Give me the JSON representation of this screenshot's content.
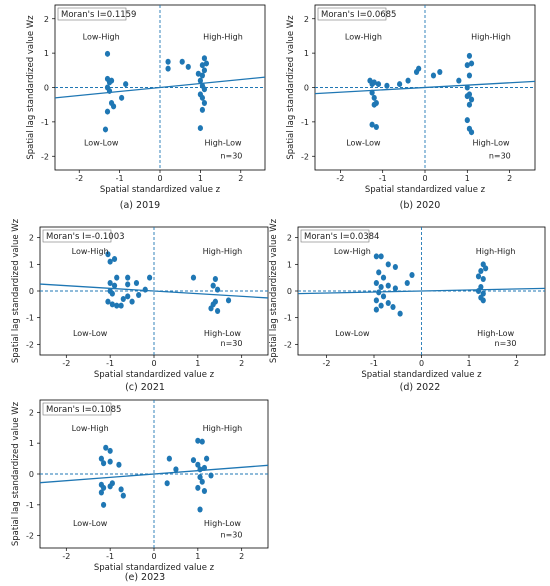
{
  "chart_data": [
    {
      "type": "scatter",
      "caption": "(a) 2019",
      "stat": "Moran's I=0.1159",
      "n_label": "n=30",
      "quadrants": {
        "top_left": "Low-High",
        "top_right": "High-High",
        "bottom_left": "Low-Low",
        "bottom_right": "High-Low"
      },
      "xlabel": "Spatial standardized value z",
      "ylabel": "Spatial lag standardized value Wz",
      "xlim": [
        -2.6,
        2.6
      ],
      "ylim": [
        -2.4,
        2.4
      ],
      "xticks": [
        -2,
        -1,
        0,
        1,
        2
      ],
      "yticks": [
        -2,
        -1,
        0,
        1,
        2
      ],
      "slope": 0.1159,
      "points": [
        [
          -1.3,
          0.98
        ],
        [
          -1.3,
          0.25
        ],
        [
          -1.25,
          0.15
        ],
        [
          -1.2,
          0.2
        ],
        [
          -1.3,
          0.0
        ],
        [
          -1.25,
          -0.1
        ],
        [
          -1.2,
          -0.45
        ],
        [
          -1.15,
          -0.55
        ],
        [
          -1.3,
          -0.7
        ],
        [
          -1.35,
          -1.22
        ],
        [
          -0.95,
          -0.3
        ],
        [
          -0.85,
          0.1
        ],
        [
          0.2,
          0.75
        ],
        [
          0.2,
          0.55
        ],
        [
          0.55,
          0.75
        ],
        [
          0.7,
          0.6
        ],
        [
          1.1,
          0.85
        ],
        [
          1.05,
          0.65
        ],
        [
          1.1,
          0.5
        ],
        [
          1.05,
          0.35
        ],
        [
          1.0,
          0.2
        ],
        [
          1.05,
          0.05
        ],
        [
          1.1,
          -0.05
        ],
        [
          1.0,
          -0.2
        ],
        [
          1.05,
          -0.3
        ],
        [
          1.1,
          -0.45
        ],
        [
          1.05,
          -0.65
        ],
        [
          1.0,
          -1.18
        ],
        [
          1.15,
          0.7
        ],
        [
          0.95,
          0.4
        ]
      ]
    },
    {
      "type": "scatter",
      "caption": "(b) 2020",
      "stat": "Moran's I=0.0685",
      "n_label": "n=30",
      "quadrants": {
        "top_left": "Low-High",
        "top_right": "High-High",
        "bottom_left": "Low-Low",
        "bottom_right": "High-Low"
      },
      "xlabel": "Spatial standardized value z",
      "ylabel": "Spatial lag standardized value Wz",
      "xlim": [
        -2.6,
        2.6
      ],
      "ylim": [
        -2.4,
        2.4
      ],
      "xticks": [
        -2,
        -1,
        0,
        1,
        2
      ],
      "yticks": [
        -2,
        -1,
        0,
        1,
        2
      ],
      "slope": 0.0685,
      "points": [
        [
          -1.3,
          0.2
        ],
        [
          -1.25,
          0.1
        ],
        [
          -1.2,
          0.15
        ],
        [
          -1.1,
          0.1
        ],
        [
          -1.25,
          -0.15
        ],
        [
          -1.2,
          -0.3
        ],
        [
          -1.15,
          -0.45
        ],
        [
          -1.2,
          -0.5
        ],
        [
          -1.25,
          -1.08
        ],
        [
          -1.15,
          -1.15
        ],
        [
          -0.9,
          0.05
        ],
        [
          -0.6,
          0.1
        ],
        [
          -0.4,
          0.2
        ],
        [
          -0.2,
          0.45
        ],
        [
          -0.15,
          0.55
        ],
        [
          0.2,
          0.35
        ],
        [
          0.35,
          0.45
        ],
        [
          0.8,
          0.2
        ],
        [
          1.05,
          0.92
        ],
        [
          1.0,
          0.65
        ],
        [
          1.1,
          0.7
        ],
        [
          1.05,
          0.35
        ],
        [
          1.0,
          0.0
        ],
        [
          1.05,
          -0.2
        ],
        [
          1.1,
          -0.35
        ],
        [
          1.05,
          -0.5
        ],
        [
          1.0,
          -0.95
        ],
        [
          1.05,
          -1.2
        ],
        [
          1.1,
          -1.3
        ],
        [
          1.0,
          -0.25
        ]
      ]
    },
    {
      "type": "scatter",
      "caption": "(c) 2021",
      "stat": "Moran's I=-0.1003",
      "n_label": "n=30",
      "quadrants": {
        "top_left": "Low-High",
        "top_right": "High-High",
        "bottom_left": "Low-Low",
        "bottom_right": "High-Low"
      },
      "xlabel": "Spatial standardized value z",
      "ylabel": "Spatial lag standardized value Wz",
      "xlim": [
        -2.6,
        2.6
      ],
      "ylim": [
        -2.4,
        2.4
      ],
      "xticks": [
        -2,
        -1,
        0,
        1,
        2
      ],
      "yticks": [
        -2,
        -1,
        0,
        1,
        2
      ],
      "slope": -0.1003,
      "points": [
        [
          -1.05,
          1.38
        ],
        [
          -1.0,
          1.1
        ],
        [
          -0.9,
          1.2
        ],
        [
          -0.85,
          0.5
        ],
        [
          -0.6,
          0.5
        ],
        [
          -0.1,
          0.5
        ],
        [
          -1.0,
          0.3
        ],
        [
          -0.9,
          0.2
        ],
        [
          -0.6,
          0.25
        ],
        [
          -0.4,
          0.3
        ],
        [
          -1.0,
          0.0
        ],
        [
          -0.95,
          -0.1
        ],
        [
          -1.05,
          -0.4
        ],
        [
          -0.95,
          -0.5
        ],
        [
          -0.85,
          -0.55
        ],
        [
          -0.7,
          -0.3
        ],
        [
          -0.6,
          -0.2
        ],
        [
          -0.5,
          -0.4
        ],
        [
          -0.35,
          -0.15
        ],
        [
          -0.2,
          0.05
        ],
        [
          -0.75,
          -0.55
        ],
        [
          0.9,
          0.5
        ],
        [
          1.4,
          0.45
        ],
        [
          1.35,
          0.2
        ],
        [
          1.45,
          0.05
        ],
        [
          1.4,
          -0.4
        ],
        [
          1.35,
          -0.5
        ],
        [
          1.3,
          -0.65
        ],
        [
          1.45,
          -0.75
        ],
        [
          1.7,
          -0.35
        ]
      ]
    },
    {
      "type": "scatter",
      "caption": "(d) 2022",
      "stat": "Moran's I=0.0384",
      "n_label": "n=30",
      "quadrants": {
        "top_left": "Low-High",
        "top_right": "High-High",
        "bottom_left": "Low-Low",
        "bottom_right": "High-Low"
      },
      "xlabel": "Spatial standardized value z",
      "ylabel": "Spatial lag standardized value Wz",
      "xlim": [
        -2.6,
        2.6
      ],
      "ylim": [
        -2.4,
        2.4
      ],
      "xticks": [
        -2,
        -1,
        0,
        1,
        2
      ],
      "yticks": [
        -2,
        -1,
        0,
        1,
        2
      ],
      "slope": 0.0384,
      "points": [
        [
          -0.95,
          1.3
        ],
        [
          -0.85,
          1.3
        ],
        [
          -0.7,
          1.0
        ],
        [
          -0.55,
          0.9
        ],
        [
          -0.9,
          0.7
        ],
        [
          -0.8,
          0.5
        ],
        [
          -0.95,
          0.3
        ],
        [
          -0.85,
          0.15
        ],
        [
          -0.7,
          0.2
        ],
        [
          -0.55,
          0.1
        ],
        [
          -0.9,
          -0.05
        ],
        [
          -0.8,
          -0.2
        ],
        [
          -0.95,
          -0.35
        ],
        [
          -0.85,
          -0.55
        ],
        [
          -0.7,
          -0.45
        ],
        [
          -0.6,
          -0.6
        ],
        [
          -0.45,
          -0.85
        ],
        [
          -0.95,
          -0.7
        ],
        [
          -0.3,
          0.3
        ],
        [
          -0.2,
          0.6
        ],
        [
          1.3,
          1.0
        ],
        [
          1.25,
          0.75
        ],
        [
          1.2,
          0.55
        ],
        [
          1.3,
          0.45
        ],
        [
          1.25,
          0.15
        ],
        [
          1.2,
          0.0
        ],
        [
          1.3,
          -0.1
        ],
        [
          1.25,
          -0.25
        ],
        [
          1.3,
          -0.35
        ],
        [
          1.35,
          0.85
        ]
      ]
    },
    {
      "type": "scatter",
      "caption": "(e) 2023",
      "stat": "Moran's I=0.1085",
      "n_label": "n=30",
      "quadrants": {
        "top_left": "Low-High",
        "top_right": "High-High",
        "bottom_left": "Low-Low",
        "bottom_right": "High-Low"
      },
      "xlabel": "Spatial standardized value z",
      "ylabel": "Spatial lag standardized value Wz",
      "xlim": [
        -2.6,
        2.6
      ],
      "ylim": [
        -2.4,
        2.4
      ],
      "xticks": [
        -2,
        -1,
        0,
        1,
        2
      ],
      "yticks": [
        -2,
        -1,
        0,
        1,
        2
      ],
      "slope": 0.1085,
      "points": [
        [
          -1.1,
          0.85
        ],
        [
          -1.0,
          0.75
        ],
        [
          -1.2,
          0.5
        ],
        [
          -1.15,
          0.35
        ],
        [
          -1.0,
          0.4
        ],
        [
          -0.8,
          0.3
        ],
        [
          -1.2,
          -0.35
        ],
        [
          -1.15,
          -0.45
        ],
        [
          -1.0,
          -0.4
        ],
        [
          -1.2,
          -0.6
        ],
        [
          -1.15,
          -1.0
        ],
        [
          -0.7,
          -0.7
        ],
        [
          -0.75,
          -0.5
        ],
        [
          -0.95,
          -0.3
        ],
        [
          0.35,
          0.5
        ],
        [
          0.5,
          0.15
        ],
        [
          0.9,
          0.45
        ],
        [
          1.0,
          1.08
        ],
        [
          1.1,
          1.05
        ],
        [
          1.0,
          0.3
        ],
        [
          1.05,
          0.15
        ],
        [
          1.15,
          0.2
        ],
        [
          1.05,
          -0.1
        ],
        [
          1.1,
          -0.25
        ],
        [
          1.0,
          -0.45
        ],
        [
          1.15,
          -0.55
        ],
        [
          1.05,
          -1.15
        ],
        [
          0.3,
          -0.3
        ],
        [
          1.2,
          0.5
        ],
        [
          1.3,
          -0.05
        ]
      ]
    }
  ]
}
